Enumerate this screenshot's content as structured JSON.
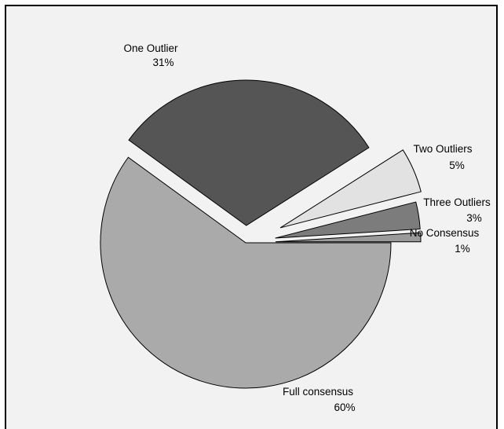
{
  "chart_data": {
    "type": "pie",
    "title": "",
    "legend": "none",
    "slices": [
      {
        "label": "Full consensus",
        "percent_label": "60%",
        "value": 60,
        "color": "#aaaaaa"
      },
      {
        "label": "One Outlier",
        "percent_label": "31%",
        "value": 31,
        "color": "#555555"
      },
      {
        "label": "Two Outliers",
        "percent_label": "5%",
        "value": 5,
        "color": "#e2e2e2"
      },
      {
        "label": "Three Outliers",
        "percent_label": "3%",
        "value": 3,
        "color": "#7c7c7c"
      },
      {
        "label": "No Consensus",
        "percent_label": "1%",
        "value": 1,
        "color": "#9a9a9a"
      }
    ],
    "background_color": "#f2f2f2",
    "outline_color": "#000000"
  }
}
